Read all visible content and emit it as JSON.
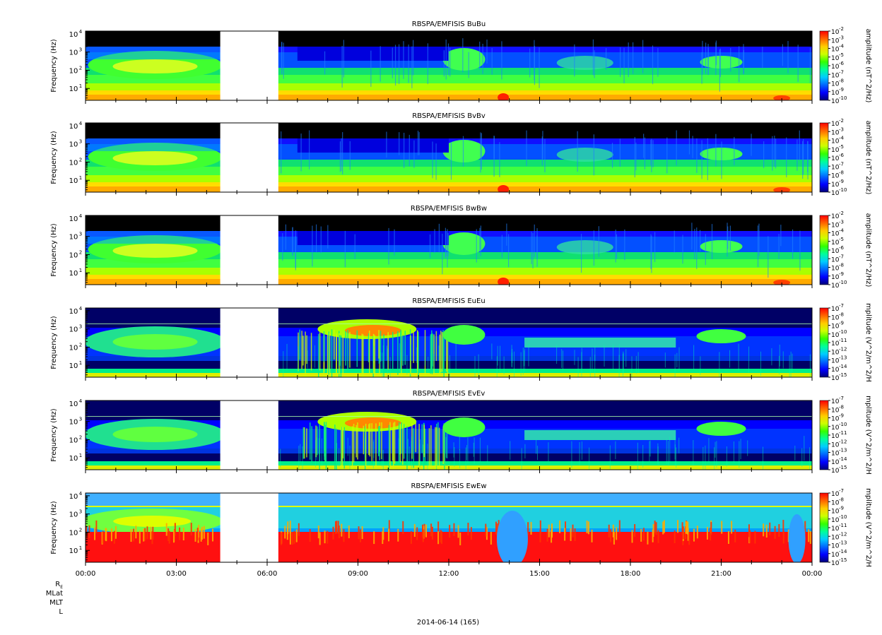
{
  "chart_data": [
    {
      "type": "heatmap",
      "title": "RBSPA/EMFISIS  BuBu",
      "ylabel": "Frequency (Hz)",
      "ylog": true,
      "y_ticks": [
        "10^1",
        "10^2",
        "10^3",
        "10^4"
      ],
      "colorbar_label": "amplitude (nT^2/Hz)",
      "colorbar_ticks": [
        "10^-2",
        "10^-3",
        "10^-4",
        "10^-5",
        "10^-6",
        "10^-7",
        "10^-8",
        "10^-9",
        "10^-10"
      ],
      "colorscale_range": [
        "10^-10",
        "10^-2"
      ],
      "data_gap_hours": [
        4.45,
        6.37
      ],
      "kind": "B"
    },
    {
      "type": "heatmap",
      "title": "RBSPA/EMFISIS  BvBv",
      "ylabel": "Frequency (Hz)",
      "ylog": true,
      "y_ticks": [
        "10^1",
        "10^2",
        "10^3",
        "10^4"
      ],
      "colorbar_label": "amplitude (nT^2/Hz)",
      "colorbar_ticks": [
        "10^-2",
        "10^-3",
        "10^-4",
        "10^-5",
        "10^-6",
        "10^-7",
        "10^-8",
        "10^-9",
        "10^-10"
      ],
      "colorscale_range": [
        "10^-10",
        "10^-2"
      ],
      "data_gap_hours": [
        4.45,
        6.37
      ],
      "kind": "B"
    },
    {
      "type": "heatmap",
      "title": "RBSPA/EMFISIS  BwBw",
      "ylabel": "Frequency (Hz)",
      "ylog": true,
      "y_ticks": [
        "10^1",
        "10^2",
        "10^3",
        "10^4"
      ],
      "colorbar_label": "amplitude (nT^2/Hz)",
      "colorbar_ticks": [
        "10^-2",
        "10^-3",
        "10^-4",
        "10^-5",
        "10^-6",
        "10^-7",
        "10^-8",
        "10^-9",
        "10^-10"
      ],
      "colorscale_range": [
        "10^-10",
        "10^-2"
      ],
      "data_gap_hours": [
        4.45,
        6.37
      ],
      "kind": "B"
    },
    {
      "type": "heatmap",
      "title": "RBSPA/EMFISIS  EuEu",
      "ylabel": "Frequency (Hz)",
      "ylog": true,
      "y_ticks": [
        "10^1",
        "10^2",
        "10^3",
        "10^4"
      ],
      "colorbar_label": "mplitude (V^2/m^2/H",
      "colorbar_ticks": [
        "10^-7",
        "10^-8",
        "10^-9",
        "10^-10",
        "10^-11",
        "10^-12",
        "10^-13",
        "10^-14",
        "10^-15"
      ],
      "colorscale_range": [
        "10^-15",
        "10^-7"
      ],
      "data_gap_hours": [
        4.45,
        6.37
      ],
      "kind": "E"
    },
    {
      "type": "heatmap",
      "title": "RBSPA/EMFISIS  EvEv",
      "ylabel": "Frequency (Hz)",
      "ylog": true,
      "y_ticks": [
        "10^1",
        "10^2",
        "10^3",
        "10^4"
      ],
      "colorbar_label": "mplitude (V^2/m^2/H",
      "colorbar_ticks": [
        "10^-7",
        "10^-8",
        "10^-9",
        "10^-10",
        "10^-11",
        "10^-12",
        "10^-13",
        "10^-14",
        "10^-15"
      ],
      "colorscale_range": [
        "10^-15",
        "10^-7"
      ],
      "data_gap_hours": [
        4.45,
        6.37
      ],
      "kind": "E"
    },
    {
      "type": "heatmap",
      "title": "RBSPA/EMFISIS  EwEw",
      "ylabel": "Frequency (Hz)",
      "ylog": true,
      "y_ticks": [
        "10^1",
        "10^2",
        "10^3",
        "10^4"
      ],
      "colorbar_label": "mplitude (V^2/m^2/H",
      "colorbar_ticks": [
        "10^-7",
        "10^-8",
        "10^-9",
        "10^-10",
        "10^-11",
        "10^-12",
        "10^-13",
        "10^-14",
        "10^-15"
      ],
      "colorscale_range": [
        "10^-15",
        "10^-7"
      ],
      "data_gap_hours": [
        4.45,
        6.37
      ],
      "kind": "Ew"
    }
  ],
  "x_axis": {
    "tick_labels": [
      "00:00",
      "03:00",
      "06:00",
      "09:00",
      "12:00",
      "15:00",
      "18:00",
      "21:00",
      "00:00"
    ],
    "range_hours": [
      0,
      24
    ],
    "date_label": "2014-06-14 (165)",
    "ephemeris_labels": [
      "RE",
      "MLat",
      "MLT",
      "L"
    ]
  },
  "colors": {
    "colormap": [
      "#00007a",
      "#0000ff",
      "#0066ff",
      "#00ccff",
      "#00ff99",
      "#33ff00",
      "#ccff00",
      "#ffcc00",
      "#ff6600",
      "#ff0000"
    ],
    "no_signal": "#000000"
  }
}
